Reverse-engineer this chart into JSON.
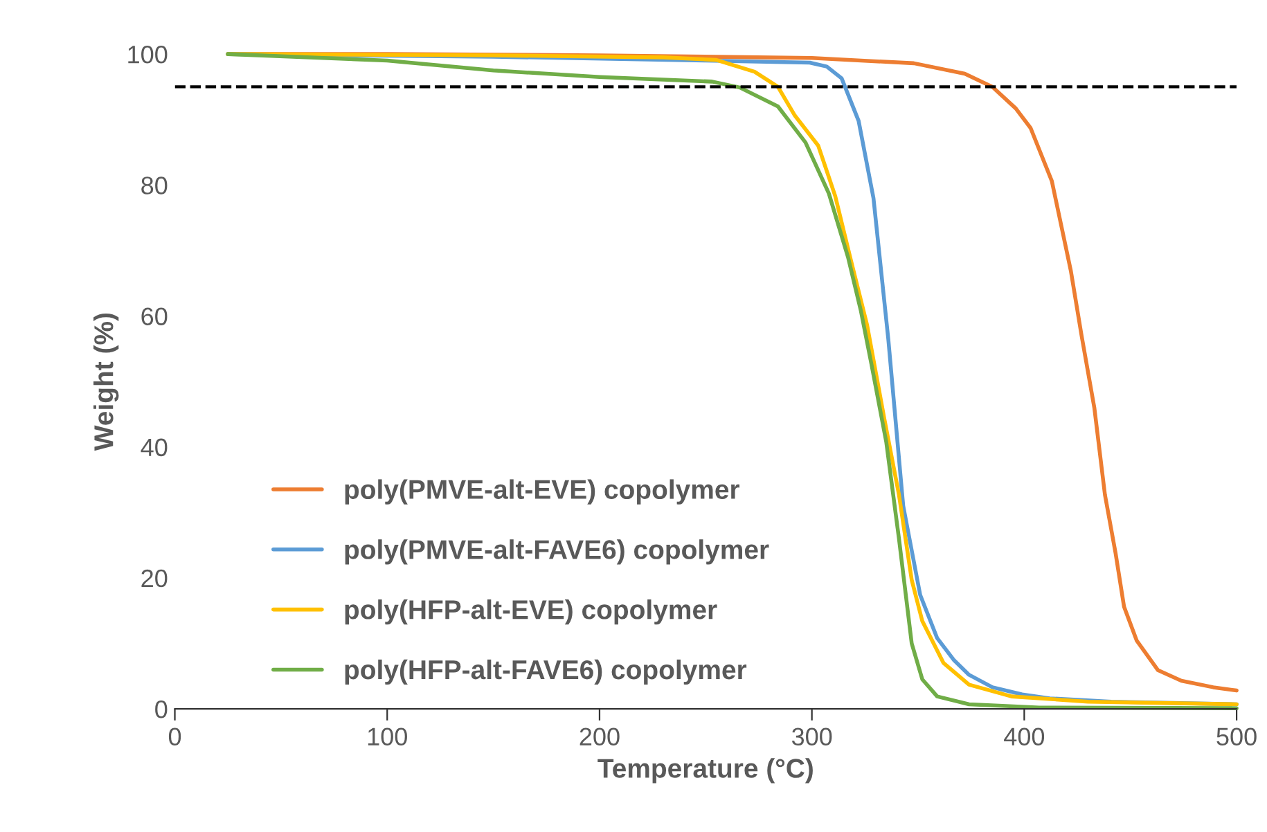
{
  "chart_data": {
    "type": "line",
    "xlabel": "Temperature (°C)",
    "ylabel": "Weight (%)",
    "xlim": [
      0,
      500
    ],
    "xticks": [
      0,
      100,
      200,
      300,
      400,
      500
    ],
    "ylim": [
      0,
      100
    ],
    "yticks": [
      0,
      20,
      40,
      60,
      80,
      100
    ],
    "grid": false,
    "legend": "bottom left",
    "marker": "none",
    "line_style": "solid",
    "ref_lines": [
      {
        "axis": "y",
        "value": 95,
        "color": "#000000",
        "line_style": "dashed"
      }
    ],
    "series": [
      {
        "name": "poly(PMVE-alt-EVE) copolymer",
        "color": "#ed7d31",
        "x": [
          25,
          100,
          200,
          300,
          348,
          372,
          385,
          396,
          403,
          413,
          422,
          427,
          433,
          438,
          443,
          447,
          453,
          463,
          474,
          489,
          500
        ],
        "values": [
          100,
          100,
          99.8,
          99.4,
          98.6,
          97,
          95,
          91.7,
          88.7,
          80.6,
          66.8,
          57,
          46,
          32.7,
          23.8,
          15.6,
          10.4,
          5.9,
          4.3,
          3.3,
          2.8
        ]
      },
      {
        "name": "poly(PMVE-alt-FAVE6) copolymer",
        "color": "#5b9bd5",
        "x": [
          25,
          150,
          250,
          299,
          307,
          314,
          322,
          329,
          336,
          343,
          351,
          359,
          367,
          374,
          385,
          399,
          412,
          441,
          500
        ],
        "values": [
          100,
          99.6,
          99,
          98.7,
          98.1,
          96.3,
          89.8,
          78,
          56.4,
          31,
          17.4,
          10.8,
          7.4,
          5.2,
          3.3,
          2.2,
          1.6,
          1.1,
          0.7
        ]
      },
      {
        "name": "poly(HFP-alt-EVE) copolymer",
        "color": "#ffc000",
        "x": [
          25,
          150,
          230,
          255,
          273,
          284,
          292,
          303,
          311,
          318,
          326,
          334,
          341,
          347,
          352,
          362,
          374,
          394,
          430,
          500
        ],
        "values": [
          100,
          99.8,
          99.5,
          99.1,
          97.3,
          95,
          90.6,
          86,
          78.3,
          69,
          58.6,
          44.5,
          32.7,
          19.7,
          13.4,
          7,
          3.7,
          1.9,
          1.1,
          0.7
        ]
      },
      {
        "name": "poly(HFP-alt-FAVE6) copolymer",
        "color": "#70ad47",
        "x": [
          25,
          100,
          150,
          200,
          253,
          266,
          284,
          297,
          308,
          317,
          323,
          328,
          335,
          341,
          347,
          352,
          359,
          374,
          407,
          500
        ],
        "values": [
          100,
          99,
          97.5,
          96.5,
          95.8,
          94.9,
          92,
          86.5,
          78.7,
          69,
          60.9,
          52.7,
          40.8,
          26,
          10,
          4.5,
          1.9,
          0.7,
          0.2,
          0.1
        ]
      }
    ]
  }
}
